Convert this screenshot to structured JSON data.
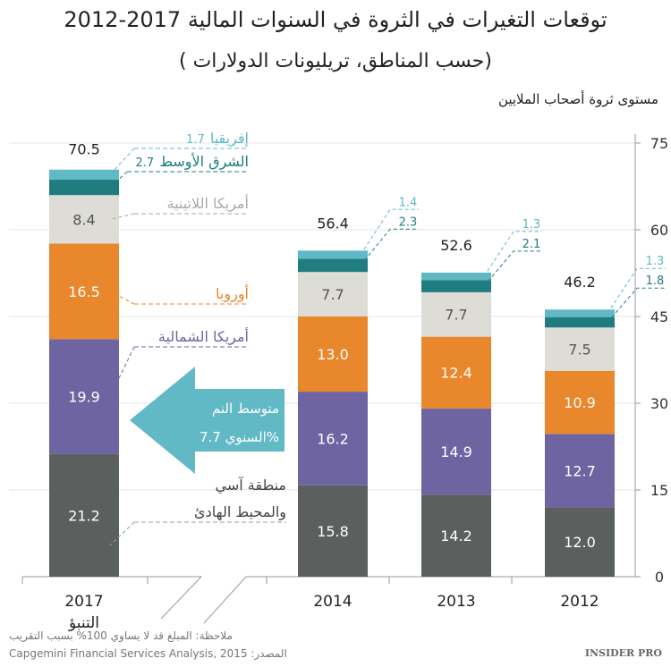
{
  "chart_data": {
    "type": "bar",
    "stacked": true,
    "title": "توقعات التغيرات في الثروة في السنوات المالية 2017-2012",
    "subtitle": "( حسب المناطق، تريليونات الدولارات)",
    "ylabel": "مستوى ثروة أصحاب الملايين",
    "ylim": [
      0,
      75
    ],
    "yticks": [
      "0",
      "15",
      "30",
      "45",
      "60",
      "75"
    ],
    "grid": true,
    "categories": [
      "2017",
      "2014",
      "2013",
      "2012"
    ],
    "category_sublabels": [
      "التنبؤ",
      "",
      "",
      ""
    ],
    "totals": [
      "70.5",
      "56.4",
      "52.6",
      "46.2"
    ],
    "series": [
      {
        "name": "منطقة آسي والمحيط الهادئ",
        "name_lines": [
          "منطقة آسي",
          "والمحيط الهادئ"
        ],
        "color": "#5b605f",
        "values": [
          21.2,
          15.8,
          14.2,
          12.0
        ]
      },
      {
        "name": "أمريكا الشمالية",
        "color": "#6e64a1",
        "values": [
          19.9,
          16.2,
          14.9,
          12.7
        ]
      },
      {
        "name": "أوروبا",
        "color": "#e8872b",
        "values": [
          16.5,
          13.0,
          12.4,
          10.9
        ]
      },
      {
        "name": "أمريكا اللاتينية",
        "color": "#dddcd6",
        "values": [
          8.4,
          7.7,
          7.7,
          7.5
        ]
      },
      {
        "name": "الشرق الأوسط",
        "color": "#1f7d80",
        "values": [
          2.7,
          2.3,
          2.1,
          1.8
        ]
      },
      {
        "name": "إفريقيا",
        "color": "#61b9c6",
        "values": [
          1.7,
          1.4,
          1.3,
          1.3
        ]
      }
    ],
    "annotation": {
      "lines": [
        "متوسط النم",
        "السنوي 7.7%"
      ],
      "color": "#61b9c6"
    }
  },
  "footer": {
    "note": "ملاحظة: المبلغ قد لا يساوي 100% بسبب التقريب",
    "source": "المصدر: Capgemini Financial Services Analysis, 2015",
    "brand": "INSIDER PRO"
  }
}
